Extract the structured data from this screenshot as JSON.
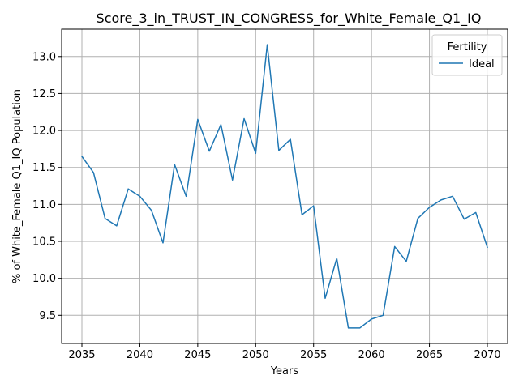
{
  "chart_data": {
    "type": "line",
    "title": "Score_3_in_TRUST_IN_CONGRESS_for_White_Female_Q1_IQ",
    "xlabel": "Years",
    "ylabel": "% of White_Female Q1_IQ Population",
    "xlim": [
      2033.25,
      2071.75
    ],
    "ylim": [
      9.12,
      13.37
    ],
    "x_ticks": [
      2035,
      2040,
      2045,
      2050,
      2055,
      2060,
      2065,
      2070
    ],
    "y_ticks": [
      9.5,
      10.0,
      10.5,
      11.0,
      11.5,
      12.0,
      12.5,
      13.0
    ],
    "x_tick_labels": [
      "2035",
      "2040",
      "2045",
      "2050",
      "2055",
      "2060",
      "2065",
      "2070"
    ],
    "y_tick_labels": [
      "9.5",
      "10.0",
      "10.5",
      "11.0",
      "11.5",
      "12.0",
      "12.5",
      "13.0"
    ],
    "grid": true,
    "legend": {
      "title": "Fertility",
      "placement": "top-right",
      "entries": [
        "Ideal"
      ]
    },
    "x": [
      2035,
      2036,
      2037,
      2038,
      2039,
      2040,
      2041,
      2042,
      2043,
      2044,
      2045,
      2046,
      2047,
      2048,
      2049,
      2050,
      2051,
      2052,
      2053,
      2054,
      2055,
      2056,
      2057,
      2058,
      2059,
      2060,
      2061,
      2062,
      2063,
      2064,
      2065,
      2066,
      2067,
      2068,
      2069,
      2070
    ],
    "series": [
      {
        "name": "Ideal",
        "color": "#1f77b4",
        "values": [
          11.65,
          11.43,
          10.81,
          10.71,
          11.21,
          11.11,
          10.92,
          10.48,
          11.54,
          11.11,
          12.15,
          11.72,
          12.08,
          11.33,
          12.16,
          11.69,
          13.16,
          11.73,
          11.88,
          10.86,
          10.98,
          9.73,
          10.27,
          9.33,
          9.33,
          9.45,
          9.5,
          10.43,
          10.23,
          10.81,
          10.96,
          11.06,
          11.11,
          10.8,
          10.89,
          10.42
        ]
      }
    ]
  }
}
